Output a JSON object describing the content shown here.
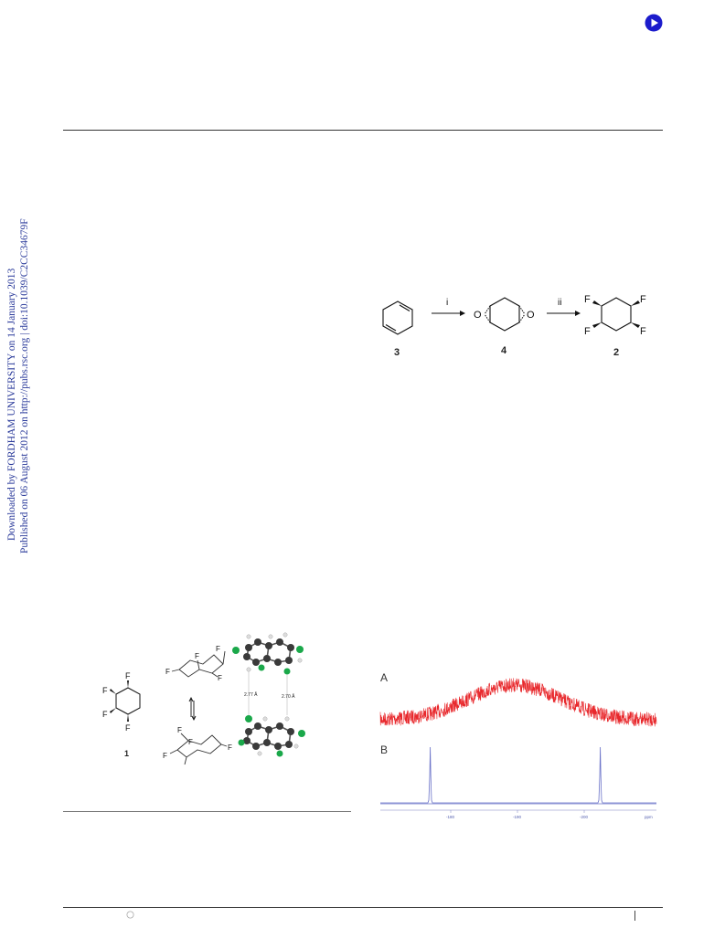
{
  "side_text": {
    "line1": "Downloaded by FORDHAM UNIVERSITY on 14 January 2013",
    "line2": "Published on 06 August 2012 on http://pubs.rsc.org | doi:10.1039/C2CC34679F"
  },
  "colors": {
    "play_icon": "#1c1ccc",
    "side_text": "#2a3a9a",
    "spectrum_a": "#e8282c",
    "spectrum_b": "#6a72c8",
    "chlorine_atom": "#1aa84a"
  },
  "scheme": {
    "compound_3": "3",
    "compound_4": "4",
    "compound_2": "2",
    "step_i": "i",
    "step_ii": "ii",
    "atom_o": "O",
    "atom_f": "F"
  },
  "figure_left": {
    "compound_1": "1",
    "distance_1": "2.77 Å",
    "distance_2": "2.70 Å"
  },
  "figure_right": {
    "panel_a": "A",
    "panel_b": "B",
    "ticks": [
      "-180",
      "-190",
      "-200"
    ],
    "unit": "ppm"
  }
}
